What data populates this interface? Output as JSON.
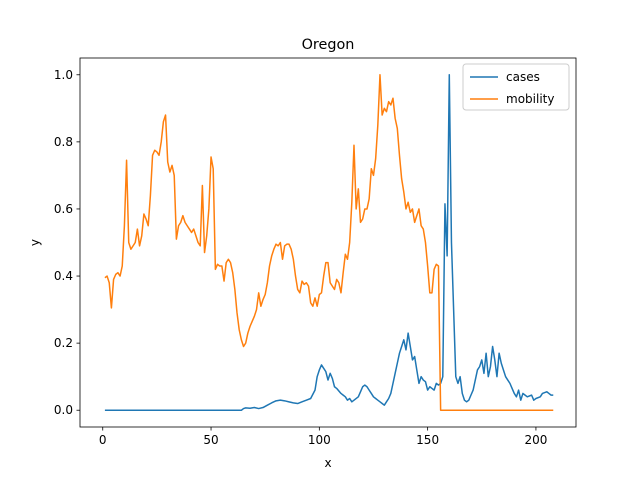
{
  "chart_data": {
    "type": "line",
    "title": "Oregon",
    "xlabel": "x",
    "ylabel": "y",
    "xlim": [
      -10.5,
      218.5
    ],
    "ylim": [
      -0.05,
      1.05
    ],
    "xticks": [
      0,
      50,
      100,
      150,
      200
    ],
    "yticks": [
      0.0,
      0.2,
      0.4,
      0.6,
      0.8,
      1.0
    ],
    "xtick_labels": [
      "0",
      "50",
      "100",
      "150",
      "200"
    ],
    "ytick_labels": [
      "0.0",
      "0.2",
      "0.4",
      "0.6",
      "0.8",
      "1.0"
    ],
    "grid": false,
    "legend_position": "top-right",
    "series": [
      {
        "name": "cases",
        "color": "#1f77b4",
        "points": [
          [
            1,
            0.0
          ],
          [
            64,
            0.0
          ],
          [
            65,
            0.005
          ],
          [
            66,
            0.007
          ],
          [
            68,
            0.006
          ],
          [
            70,
            0.008
          ],
          [
            72,
            0.005
          ],
          [
            74,
            0.008
          ],
          [
            76,
            0.015
          ],
          [
            78,
            0.022
          ],
          [
            80,
            0.028
          ],
          [
            82,
            0.03
          ],
          [
            84,
            0.028
          ],
          [
            86,
            0.025
          ],
          [
            88,
            0.022
          ],
          [
            90,
            0.02
          ],
          [
            92,
            0.025
          ],
          [
            94,
            0.03
          ],
          [
            96,
            0.035
          ],
          [
            98,
            0.06
          ],
          [
            99,
            0.1
          ],
          [
            100,
            0.12
          ],
          [
            101,
            0.135
          ],
          [
            102,
            0.125
          ],
          [
            103,
            0.115
          ],
          [
            104,
            0.09
          ],
          [
            105,
            0.11
          ],
          [
            106,
            0.095
          ],
          [
            107,
            0.07
          ],
          [
            108,
            0.065
          ],
          [
            110,
            0.05
          ],
          [
            111,
            0.045
          ],
          [
            112,
            0.04
          ],
          [
            113,
            0.03
          ],
          [
            114,
            0.035
          ],
          [
            115,
            0.025
          ],
          [
            116,
            0.03
          ],
          [
            118,
            0.04
          ],
          [
            119,
            0.055
          ],
          [
            120,
            0.07
          ],
          [
            121,
            0.075
          ],
          [
            122,
            0.07
          ],
          [
            123,
            0.06
          ],
          [
            124,
            0.05
          ],
          [
            125,
            0.04
          ],
          [
            126,
            0.035
          ],
          [
            127,
            0.03
          ],
          [
            128,
            0.025
          ],
          [
            129,
            0.02
          ],
          [
            130,
            0.015
          ],
          [
            131,
            0.025
          ],
          [
            132,
            0.035
          ],
          [
            133,
            0.05
          ],
          [
            134,
            0.08
          ],
          [
            135,
            0.11
          ],
          [
            136,
            0.14
          ],
          [
            137,
            0.17
          ],
          [
            138,
            0.19
          ],
          [
            139,
            0.21
          ],
          [
            140,
            0.18
          ],
          [
            141,
            0.23
          ],
          [
            142,
            0.19
          ],
          [
            143,
            0.15
          ],
          [
            144,
            0.16
          ],
          [
            145,
            0.12
          ],
          [
            146,
            0.08
          ],
          [
            147,
            0.1
          ],
          [
            148,
            0.09
          ],
          [
            149,
            0.085
          ],
          [
            150,
            0.06
          ],
          [
            151,
            0.07
          ],
          [
            152,
            0.065
          ],
          [
            153,
            0.06
          ],
          [
            154,
            0.08
          ],
          [
            155,
            0.075
          ],
          [
            156,
            0.08
          ],
          [
            157,
            0.1
          ],
          [
            158,
            0.615
          ],
          [
            159,
            0.46
          ],
          [
            160,
            1.0
          ],
          [
            161,
            0.5
          ],
          [
            162,
            0.3
          ],
          [
            163,
            0.1
          ],
          [
            164,
            0.08
          ],
          [
            165,
            0.1
          ],
          [
            166,
            0.05
          ],
          [
            167,
            0.03
          ],
          [
            168,
            0.025
          ],
          [
            169,
            0.03
          ],
          [
            170,
            0.045
          ],
          [
            171,
            0.06
          ],
          [
            172,
            0.09
          ],
          [
            173,
            0.12
          ],
          [
            174,
            0.13
          ],
          [
            175,
            0.15
          ],
          [
            176,
            0.11
          ],
          [
            177,
            0.17
          ],
          [
            178,
            0.1
          ],
          [
            179,
            0.13
          ],
          [
            180,
            0.19
          ],
          [
            181,
            0.15
          ],
          [
            182,
            0.1
          ],
          [
            183,
            0.17
          ],
          [
            184,
            0.14
          ],
          [
            185,
            0.12
          ],
          [
            186,
            0.1
          ],
          [
            187,
            0.09
          ],
          [
            188,
            0.08
          ],
          [
            189,
            0.065
          ],
          [
            190,
            0.05
          ],
          [
            191,
            0.04
          ],
          [
            192,
            0.06
          ],
          [
            193,
            0.03
          ],
          [
            194,
            0.05
          ],
          [
            195,
            0.045
          ],
          [
            196,
            0.04
          ],
          [
            198,
            0.045
          ],
          [
            199,
            0.03
          ],
          [
            200,
            0.035
          ],
          [
            202,
            0.04
          ],
          [
            203,
            0.05
          ],
          [
            205,
            0.055
          ],
          [
            206,
            0.05
          ],
          [
            207,
            0.045
          ],
          [
            208,
            0.045
          ]
        ]
      },
      {
        "name": "mobility",
        "color": "#ff7f0e",
        "points": [
          [
            1,
            0.395
          ],
          [
            2,
            0.4
          ],
          [
            3,
            0.38
          ],
          [
            4,
            0.305
          ],
          [
            5,
            0.39
          ],
          [
            6,
            0.405
          ],
          [
            7,
            0.41
          ],
          [
            8,
            0.4
          ],
          [
            9,
            0.43
          ],
          [
            10,
            0.55
          ],
          [
            11,
            0.745
          ],
          [
            12,
            0.5
          ],
          [
            13,
            0.48
          ],
          [
            14,
            0.49
          ],
          [
            15,
            0.5
          ],
          [
            16,
            0.54
          ],
          [
            17,
            0.49
          ],
          [
            18,
            0.52
          ],
          [
            19,
            0.585
          ],
          [
            20,
            0.57
          ],
          [
            21,
            0.55
          ],
          [
            22,
            0.64
          ],
          [
            23,
            0.76
          ],
          [
            24,
            0.775
          ],
          [
            25,
            0.77
          ],
          [
            26,
            0.76
          ],
          [
            27,
            0.8
          ],
          [
            28,
            0.86
          ],
          [
            29,
            0.88
          ],
          [
            30,
            0.74
          ],
          [
            31,
            0.71
          ],
          [
            32,
            0.73
          ],
          [
            33,
            0.7
          ],
          [
            34,
            0.51
          ],
          [
            35,
            0.55
          ],
          [
            36,
            0.56
          ],
          [
            37,
            0.58
          ],
          [
            38,
            0.56
          ],
          [
            39,
            0.55
          ],
          [
            40,
            0.54
          ],
          [
            41,
            0.53
          ],
          [
            42,
            0.54
          ],
          [
            43,
            0.52
          ],
          [
            44,
            0.5
          ],
          [
            45,
            0.49
          ],
          [
            46,
            0.67
          ],
          [
            47,
            0.47
          ],
          [
            48,
            0.52
          ],
          [
            49,
            0.6
          ],
          [
            50,
            0.755
          ],
          [
            51,
            0.72
          ],
          [
            52,
            0.42
          ],
          [
            53,
            0.435
          ],
          [
            54,
            0.43
          ],
          [
            55,
            0.43
          ],
          [
            56,
            0.385
          ],
          [
            57,
            0.44
          ],
          [
            58,
            0.45
          ],
          [
            59,
            0.44
          ],
          [
            60,
            0.41
          ],
          [
            61,
            0.36
          ],
          [
            62,
            0.29
          ],
          [
            63,
            0.24
          ],
          [
            64,
            0.21
          ],
          [
            65,
            0.19
          ],
          [
            66,
            0.2
          ],
          [
            67,
            0.23
          ],
          [
            68,
            0.25
          ],
          [
            69,
            0.265
          ],
          [
            70,
            0.28
          ],
          [
            71,
            0.3
          ],
          [
            72,
            0.35
          ],
          [
            73,
            0.31
          ],
          [
            74,
            0.33
          ],
          [
            75,
            0.345
          ],
          [
            76,
            0.38
          ],
          [
            77,
            0.43
          ],
          [
            78,
            0.46
          ],
          [
            79,
            0.48
          ],
          [
            80,
            0.495
          ],
          [
            81,
            0.49
          ],
          [
            82,
            0.5
          ],
          [
            83,
            0.45
          ],
          [
            84,
            0.49
          ],
          [
            85,
            0.495
          ],
          [
            86,
            0.495
          ],
          [
            87,
            0.48
          ],
          [
            88,
            0.45
          ],
          [
            89,
            0.4
          ],
          [
            90,
            0.36
          ],
          [
            91,
            0.35
          ],
          [
            92,
            0.385
          ],
          [
            93,
            0.375
          ],
          [
            94,
            0.38
          ],
          [
            95,
            0.37
          ],
          [
            96,
            0.32
          ],
          [
            97,
            0.31
          ],
          [
            98,
            0.335
          ],
          [
            99,
            0.31
          ],
          [
            100,
            0.345
          ],
          [
            101,
            0.35
          ],
          [
            102,
            0.4
          ],
          [
            103,
            0.44
          ],
          [
            104,
            0.44
          ],
          [
            105,
            0.38
          ],
          [
            106,
            0.37
          ],
          [
            107,
            0.36
          ],
          [
            108,
            0.39
          ],
          [
            109,
            0.38
          ],
          [
            110,
            0.35
          ],
          [
            111,
            0.41
          ],
          [
            112,
            0.465
          ],
          [
            113,
            0.45
          ],
          [
            114,
            0.5
          ],
          [
            115,
            0.62
          ],
          [
            116,
            0.79
          ],
          [
            117,
            0.6
          ],
          [
            118,
            0.66
          ],
          [
            119,
            0.56
          ],
          [
            120,
            0.57
          ],
          [
            121,
            0.6
          ],
          [
            122,
            0.6
          ],
          [
            123,
            0.63
          ],
          [
            124,
            0.72
          ],
          [
            125,
            0.7
          ],
          [
            126,
            0.75
          ],
          [
            127,
            0.85
          ],
          [
            128,
            1.0
          ],
          [
            129,
            0.88
          ],
          [
            130,
            0.9
          ],
          [
            131,
            0.89
          ],
          [
            132,
            0.92
          ],
          [
            133,
            0.91
          ],
          [
            134,
            0.93
          ],
          [
            135,
            0.87
          ],
          [
            136,
            0.84
          ],
          [
            137,
            0.76
          ],
          [
            138,
            0.69
          ],
          [
            139,
            0.65
          ],
          [
            140,
            0.6
          ],
          [
            141,
            0.62
          ],
          [
            142,
            0.59
          ],
          [
            143,
            0.6
          ],
          [
            144,
            0.56
          ],
          [
            145,
            0.58
          ],
          [
            146,
            0.6
          ],
          [
            147,
            0.55
          ],
          [
            148,
            0.54
          ],
          [
            149,
            0.5
          ],
          [
            150,
            0.43
          ],
          [
            151,
            0.35
          ],
          [
            152,
            0.35
          ],
          [
            153,
            0.42
          ],
          [
            154,
            0.435
          ],
          [
            155,
            0.43
          ],
          [
            156,
            0.0
          ],
          [
            208,
            0.0
          ]
        ]
      }
    ]
  }
}
